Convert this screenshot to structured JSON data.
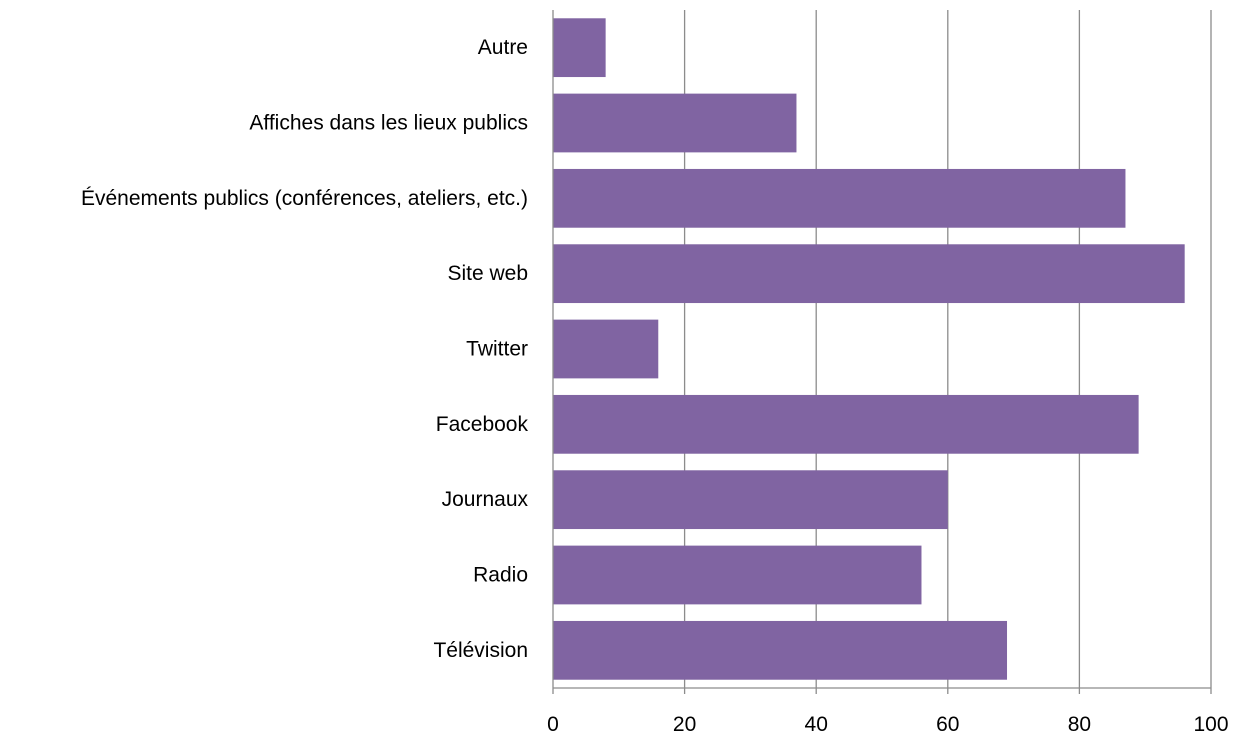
{
  "chart_data": {
    "type": "bar",
    "orientation": "horizontal",
    "title": "",
    "xlabel": "",
    "ylabel": "",
    "categories": [
      "Télévision",
      "Radio",
      "Journaux",
      "Facebook",
      "Twitter",
      "Site web",
      "Événements publics (conférences, ateliers, etc.)",
      "Affiches dans les lieux publics",
      "Autre"
    ],
    "values": [
      69,
      56,
      60,
      89,
      16,
      96,
      87,
      37,
      8
    ],
    "xlim": [
      0,
      100
    ],
    "x_ticks": [
      0,
      20,
      40,
      60,
      80,
      100
    ],
    "grid": "vertical",
    "legend": "none",
    "bar_color": "#8064a2"
  }
}
